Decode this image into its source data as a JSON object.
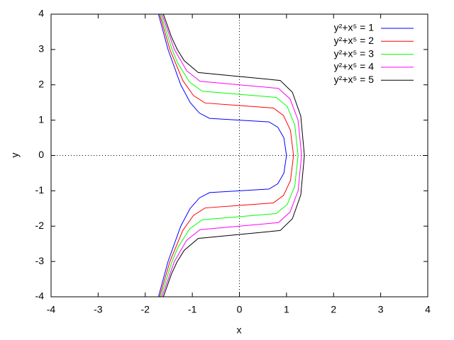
{
  "chart_data": {
    "type": "line",
    "x_label": "x",
    "y_label": "y",
    "xlim": [
      -4,
      4
    ],
    "ylim": [
      -4,
      4
    ],
    "xticks": [
      -4,
      -3,
      -2,
      -1,
      0,
      1,
      2,
      3,
      4
    ],
    "yticks": [
      -4,
      -3,
      -2,
      -1,
      0,
      1,
      2,
      3,
      4
    ],
    "zero_axes": true,
    "legend": "top-right",
    "series": [
      {
        "name": "y²+x⁵ = 1",
        "color": "#0000ff",
        "x": [
          -1.719,
          -1.516,
          -1.246,
          -1.046,
          -0.849,
          -0.634,
          0,
          0.628,
          0.815,
          0.944,
          1,
          0.944,
          0.815,
          0.628,
          0,
          -0.634,
          -0.849,
          -1.046,
          -1.246,
          -1.516,
          -1.719
        ],
        "y": [
          -4,
          -3,
          -2,
          -1.5,
          -1.2,
          -1.05,
          -1,
          -0.95,
          -0.8,
          -0.5,
          0,
          0.5,
          0.8,
          0.95,
          1,
          1.05,
          1.2,
          1.5,
          2,
          3,
          4
        ]
      },
      {
        "name": "y²+x⁵ = 2",
        "color": "#ff0000",
        "x": [
          -1.695,
          -1.476,
          -1.202,
          -0.976,
          -0.728,
          0,
          0.722,
          0.936,
          1.085,
          1.149,
          1.085,
          0.936,
          0.722,
          0,
          -0.728,
          -0.976,
          -1.202,
          -1.476,
          -1.695
        ],
        "y": [
          -4,
          -3,
          -2.121,
          -1.697,
          -1.485,
          -1.414,
          -1.343,
          -1.131,
          -0.707,
          0,
          0.707,
          1.131,
          1.343,
          1.414,
          1.485,
          1.697,
          2.121,
          3,
          4
        ]
      },
      {
        "name": "y²+x⁵ = 3",
        "color": "#00ff00",
        "x": [
          -1.67,
          -1.431,
          -1.303,
          -1.058,
          -0.79,
          0,
          0.782,
          1.015,
          1.176,
          1.246,
          1.176,
          1.015,
          0.782,
          0,
          -0.79,
          -1.058,
          -1.303,
          -1.431,
          -1.67
        ],
        "y": [
          -4,
          -3,
          -2.598,
          -2.078,
          -1.819,
          -1.732,
          -1.645,
          -1.386,
          -0.866,
          0,
          0.866,
          1.386,
          1.645,
          1.732,
          1.819,
          2.078,
          2.598,
          3,
          4
        ]
      },
      {
        "name": "y²+x⁵ = 4",
        "color": "#ff00ff",
        "x": [
          -1.644,
          -1.381,
          -1.121,
          -0.837,
          0,
          0.829,
          1.076,
          1.246,
          1.32,
          1.246,
          1.076,
          0.829,
          0,
          -0.837,
          -1.121,
          -1.381,
          -1.644
        ],
        "y": [
          -4,
          -3,
          -2.4,
          -2.1,
          -2,
          -1.9,
          -1.6,
          -1,
          0,
          1,
          1.6,
          1.9,
          2,
          2.1,
          2.4,
          3,
          4
        ]
      },
      {
        "name": "y²+x⁵ = 5",
        "color": "#000000",
        "x": [
          -1.615,
          -1.443,
          -1.32,
          -1.172,
          -0.875,
          0,
          0.867,
          1.125,
          1.303,
          1.38,
          1.303,
          1.125,
          0.867,
          0,
          -0.875,
          -1.172,
          -1.32,
          -1.443,
          -1.615
        ],
        "y": [
          -4,
          -3.354,
          -3,
          -2.683,
          -2.348,
          -2.236,
          -2.124,
          -1.789,
          -1.118,
          0,
          1.118,
          1.789,
          2.124,
          2.236,
          2.348,
          2.683,
          3,
          3.354,
          4
        ]
      }
    ]
  }
}
